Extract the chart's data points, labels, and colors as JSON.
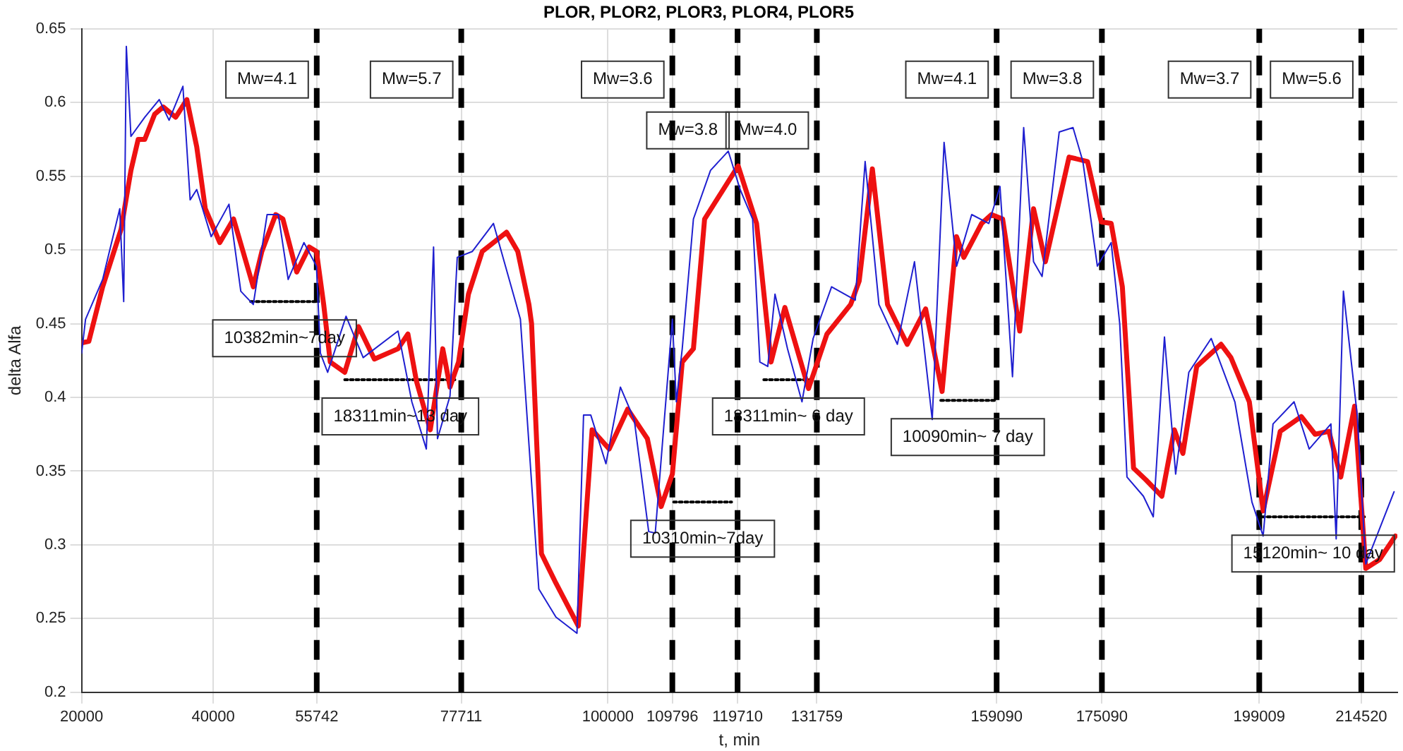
{
  "chart_data": {
    "type": "line",
    "title": "PLOR, PLOR2, PLOR3, PLOR4, PLOR5",
    "xlabel": "t, min",
    "ylabel": "delta Alfa",
    "xlim": [
      20000,
      220000
    ],
    "xticks": [
      20000,
      40000,
      55742,
      77711,
      100000,
      109796,
      119710,
      131759,
      159090,
      175090,
      199009,
      214520
    ],
    "ylim": [
      0.2,
      0.65
    ],
    "yticks": [
      0.2,
      0.25,
      0.3,
      0.35,
      0.4,
      0.45,
      0.5,
      0.55,
      0.6,
      0.65
    ],
    "grid": true,
    "series": [
      {
        "color": "#1f1fd0",
        "x": [
          20000,
          20600,
          23200,
          25800,
          26400,
          26800,
          27500,
          29600,
          31800,
          33300,
          35400,
          36500,
          37500,
          39700,
          42400,
          44200,
          46100,
          48200,
          49900,
          51400,
          53800,
          55700,
          56300,
          57400,
          60200,
          62800,
          68100,
          70200,
          72400,
          73500,
          74100,
          76000,
          77100,
          79400,
          82600,
          86700,
          88800,
          89500,
          92100,
          95300,
          96300,
          97400,
          99700,
          101900,
          104000,
          106200,
          107200,
          109800,
          110400,
          111300,
          113000,
          115600,
          118300,
          120100,
          122000,
          123100,
          124300,
          125400,
          127300,
          129500,
          131200,
          134000,
          137600,
          139100,
          141200,
          144000,
          146600,
          149300,
          151100,
          153000,
          155300,
          157900,
          159600,
          161500,
          163200,
          164700,
          166000,
          168600,
          170700,
          172200,
          174400,
          176500,
          177800,
          178900,
          181400,
          182900,
          184600,
          186300,
          188300,
          191700,
          195300,
          197900,
          199600,
          201100,
          204300,
          206600,
          209900,
          210700,
          211800,
          213900,
          215200,
          219500
        ],
        "values": [
          0.43,
          0.453,
          0.48,
          0.528,
          0.465,
          0.638,
          0.577,
          0.59,
          0.602,
          0.588,
          0.611,
          0.534,
          0.541,
          0.509,
          0.531,
          0.472,
          0.463,
          0.524,
          0.524,
          0.48,
          0.505,
          0.489,
          0.43,
          0.417,
          0.455,
          0.427,
          0.445,
          0.397,
          0.365,
          0.502,
          0.372,
          0.401,
          0.495,
          0.499,
          0.518,
          0.453,
          0.316,
          0.27,
          0.251,
          0.24,
          0.388,
          0.388,
          0.355,
          0.407,
          0.385,
          0.309,
          0.308,
          0.453,
          0.397,
          0.433,
          0.521,
          0.554,
          0.567,
          0.541,
          0.521,
          0.424,
          0.421,
          0.47,
          0.433,
          0.397,
          0.44,
          0.475,
          0.466,
          0.56,
          0.463,
          0.436,
          0.492,
          0.385,
          0.573,
          0.489,
          0.524,
          0.518,
          0.543,
          0.414,
          0.583,
          0.492,
          0.482,
          0.58,
          0.583,
          0.56,
          0.489,
          0.505,
          0.45,
          0.346,
          0.333,
          0.319,
          0.441,
          0.348,
          0.417,
          0.44,
          0.397,
          0.329,
          0.306,
          0.382,
          0.397,
          0.365,
          0.382,
          0.304,
          0.472,
          0.388,
          0.287,
          0.336
        ]
      },
      {
        "color": "#ee1111",
        "x": [
          20000,
          21100,
          23200,
          26000,
          27500,
          28600,
          29600,
          31100,
          32400,
          34300,
          36000,
          37500,
          38800,
          41000,
          43100,
          46100,
          47400,
          49500,
          50600,
          52700,
          54600,
          55700,
          56800,
          57800,
          60000,
          62100,
          64500,
          68100,
          69600,
          70900,
          73000,
          74900,
          76000,
          77300,
          78800,
          80900,
          84600,
          86300,
          88000,
          88400,
          89900,
          92100,
          95500,
          97600,
          100200,
          103000,
          106000,
          108100,
          109800,
          111300,
          113000,
          114700,
          119800,
          122600,
          124800,
          126900,
          130500,
          133300,
          136900,
          138200,
          140200,
          142500,
          145500,
          148300,
          150800,
          153000,
          154100,
          156800,
          158300,
          160000,
          162600,
          164700,
          166500,
          170100,
          172900,
          175000,
          176500,
          178200,
          179900,
          181800,
          184200,
          186100,
          187400,
          189500,
          193200,
          194700,
          197500,
          199600,
          202200,
          205400,
          207500,
          209600,
          211400,
          213500,
          215200,
          217300,
          219700
        ],
        "values": [
          0.437,
          0.438,
          0.475,
          0.514,
          0.554,
          0.575,
          0.575,
          0.592,
          0.597,
          0.59,
          0.602,
          0.57,
          0.528,
          0.505,
          0.521,
          0.475,
          0.499,
          0.524,
          0.521,
          0.485,
          0.502,
          0.499,
          0.463,
          0.424,
          0.417,
          0.448,
          0.426,
          0.433,
          0.443,
          0.411,
          0.378,
          0.433,
          0.407,
          0.424,
          0.47,
          0.499,
          0.512,
          0.499,
          0.463,
          0.45,
          0.294,
          0.274,
          0.245,
          0.378,
          0.365,
          0.392,
          0.372,
          0.326,
          0.348,
          0.424,
          0.433,
          0.521,
          0.557,
          0.518,
          0.424,
          0.461,
          0.406,
          0.443,
          0.463,
          0.479,
          0.555,
          0.463,
          0.436,
          0.46,
          0.404,
          0.509,
          0.495,
          0.518,
          0.524,
          0.521,
          0.445,
          0.528,
          0.492,
          0.563,
          0.56,
          0.519,
          0.518,
          0.475,
          0.352,
          0.344,
          0.333,
          0.378,
          0.362,
          0.421,
          0.436,
          0.427,
          0.397,
          0.323,
          0.377,
          0.387,
          0.375,
          0.377,
          0.346,
          0.394,
          0.284,
          0.29,
          0.306
        ]
      },
      {
        "color": "#000000",
        "line_style": "dotted",
        "x": [
          45700,
          56000
        ],
        "values": [
          0.465,
          0.465
        ]
      },
      {
        "color": "#000000",
        "line_style": "dotted",
        "x": [
          60000,
          76900
        ],
        "values": [
          0.412,
          0.412
        ]
      },
      {
        "color": "#000000",
        "line_style": "dotted",
        "x": [
          110000,
          118800
        ],
        "values": [
          0.329,
          0.329
        ]
      },
      {
        "color": "#000000",
        "line_style": "dotted",
        "x": [
          123700,
          131200
        ],
        "values": [
          0.412,
          0.412
        ]
      },
      {
        "color": "#000000",
        "line_style": "dotted",
        "x": [
          150600,
          158800
        ],
        "values": [
          0.398,
          0.398
        ]
      },
      {
        "color": "#000000",
        "line_style": "dotted",
        "x": [
          199400,
          215000
        ],
        "values": [
          0.319,
          0.319
        ]
      }
    ],
    "ref_lines": [
      {
        "axis": "x",
        "value": 55742,
        "color": "#000000",
        "line_style": "dashed"
      },
      {
        "axis": "x",
        "value": 77711,
        "color": "#000000",
        "line_style": "dashed"
      },
      {
        "axis": "x",
        "value": 109796,
        "color": "#000000",
        "line_style": "dashed"
      },
      {
        "axis": "x",
        "value": 119710,
        "color": "#000000",
        "line_style": "dashed"
      },
      {
        "axis": "x",
        "value": 131759,
        "color": "#000000",
        "line_style": "dashed"
      },
      {
        "axis": "x",
        "value": 159090,
        "color": "#000000",
        "line_style": "dashed"
      },
      {
        "axis": "x",
        "value": 175090,
        "color": "#000000",
        "line_style": "dashed"
      },
      {
        "axis": "x",
        "value": 199009,
        "color": "#000000",
        "line_style": "dashed"
      },
      {
        "axis": "x",
        "value": 214520,
        "color": "#000000",
        "line_style": "dashed"
      }
    ],
    "annotations": [
      {
        "text": "Mw=4.1",
        "x": 55742
      },
      {
        "text": "Mw=5.7",
        "x": 77711
      },
      {
        "text": "Mw=3.6",
        "x": 109796
      },
      {
        "text": "Mw=3.8",
        "x": 119710
      },
      {
        "text": "Mw=4.0",
        "x": 131759
      },
      {
        "text": "Mw=4.1",
        "x": 159090
      },
      {
        "text": "Mw=3.8",
        "x": 175090
      },
      {
        "text": "Mw=3.7",
        "x": 199009
      },
      {
        "text": "Mw=5.6",
        "x": 214520
      },
      {
        "text": "10382min~7day",
        "x": 50850,
        "y": 0.465
      },
      {
        "text": "18311min~13 day",
        "x": 68450,
        "y": 0.412
      },
      {
        "text": "10310min~7day",
        "x": 114400,
        "y": 0.329
      },
      {
        "text": "18311min~ 6 day",
        "x": 127450,
        "y": 0.412
      },
      {
        "text": "10090min~ 7 day",
        "x": 154700,
        "y": 0.398
      },
      {
        "text": "15120min~ 10 day",
        "x": 207200,
        "y": 0.319
      }
    ]
  }
}
